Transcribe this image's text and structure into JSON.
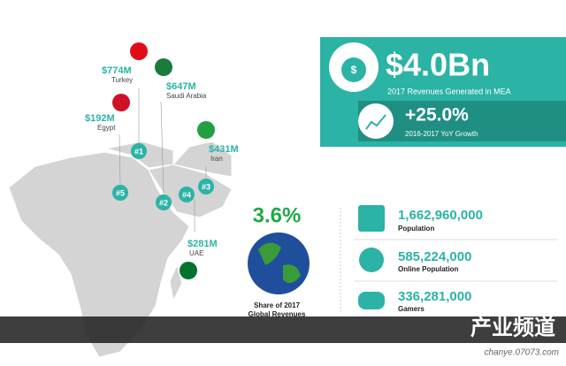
{
  "headline": {
    "value": "$4.0Bn",
    "caption": "2017 Revenues Generated in MEA"
  },
  "growth": {
    "value": "+25.0%",
    "caption": "2016-2017 YoY Growth"
  },
  "countries": [
    {
      "amount": "$774M",
      "name": "Turkey"
    },
    {
      "amount": "$647M",
      "name": "Saudi Arabia"
    },
    {
      "amount": "$192M",
      "name": "Egypt"
    },
    {
      "amount": "$431M",
      "name": "Iran"
    },
    {
      "amount": "$281M",
      "name": "UAE"
    }
  ],
  "map_markers": [
    "#1",
    "#2",
    "#3",
    "#4",
    "#5"
  ],
  "share": {
    "value": "3.6%",
    "caption_lines": [
      "Share of 2017",
      "Global Revenues"
    ]
  },
  "stats": [
    {
      "value": "1,662,960,000",
      "label": "Population"
    },
    {
      "value": "585,224,000",
      "label": "Online Population"
    },
    {
      "value": "336,281,000",
      "label": "Gamers"
    }
  ],
  "watermark": {
    "title": "产业频道",
    "url": "chanye.07073.com"
  }
}
